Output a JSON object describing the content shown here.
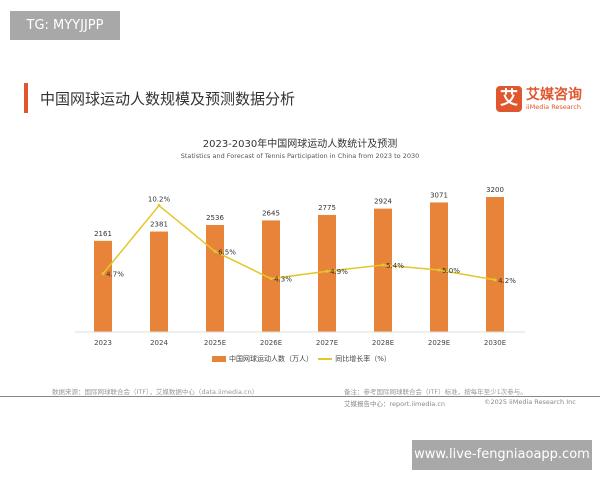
{
  "watermark_top": "TG: MYYJJPP",
  "watermark_bottom": "www.live-fengniaoapp.com",
  "header": {
    "title": "中国网球运动人数规模及预测数据分析",
    "logo_mark": "艾",
    "logo_cn": "艾媒咨询",
    "logo_en": "iiMedia Research"
  },
  "footer": {
    "source": "数据来源：国际网球联合会（ITF），艾媒数据中心（data.iimedia.cn）",
    "note": "备注：参考国际网球联合会（ITF）标准，按每年至少1次参与。",
    "report": "艾媒报告中心：report.iimedia.cn",
    "copyright": "©2025  iiMedia Research  Inc"
  },
  "colors": {
    "bar": "#e8843a",
    "line": "#e3c72a",
    "accent": "#e0562f"
  },
  "chart_data": {
    "type": "bar+line",
    "title": "2023-2030年中国网球运动人数统计及预测",
    "subtitle": "Statistics and Forecast of Tennis Participation in China from 2023 to 2030",
    "categories": [
      "2023",
      "2024",
      "2025E",
      "2026E",
      "2027E",
      "2028E",
      "2029E",
      "2030E"
    ],
    "series": [
      {
        "name": "中国网球运动人数（万人）",
        "type": "bar",
        "values": [
          2161,
          2381,
          2536,
          2645,
          2775,
          2924,
          3071,
          3200
        ],
        "labels": [
          "2161",
          "2381",
          "2536",
          "2645",
          "2775",
          "2924",
          "3071",
          "3200"
        ]
      },
      {
        "name": "同比增长率（%）",
        "type": "line",
        "values": [
          4.7,
          10.2,
          6.5,
          4.3,
          4.9,
          5.4,
          5.0,
          4.2
        ],
        "labels": [
          "4.7%",
          "10.2%",
          "6.5%",
          "4.3%",
          "4.9%",
          "5.4%",
          "5.0%",
          "4.2%"
        ]
      }
    ],
    "ylim_bar": [
      0,
      3200
    ],
    "ylim_line": [
      0,
      10.8
    ],
    "legend": "bottom",
    "grid": false
  }
}
